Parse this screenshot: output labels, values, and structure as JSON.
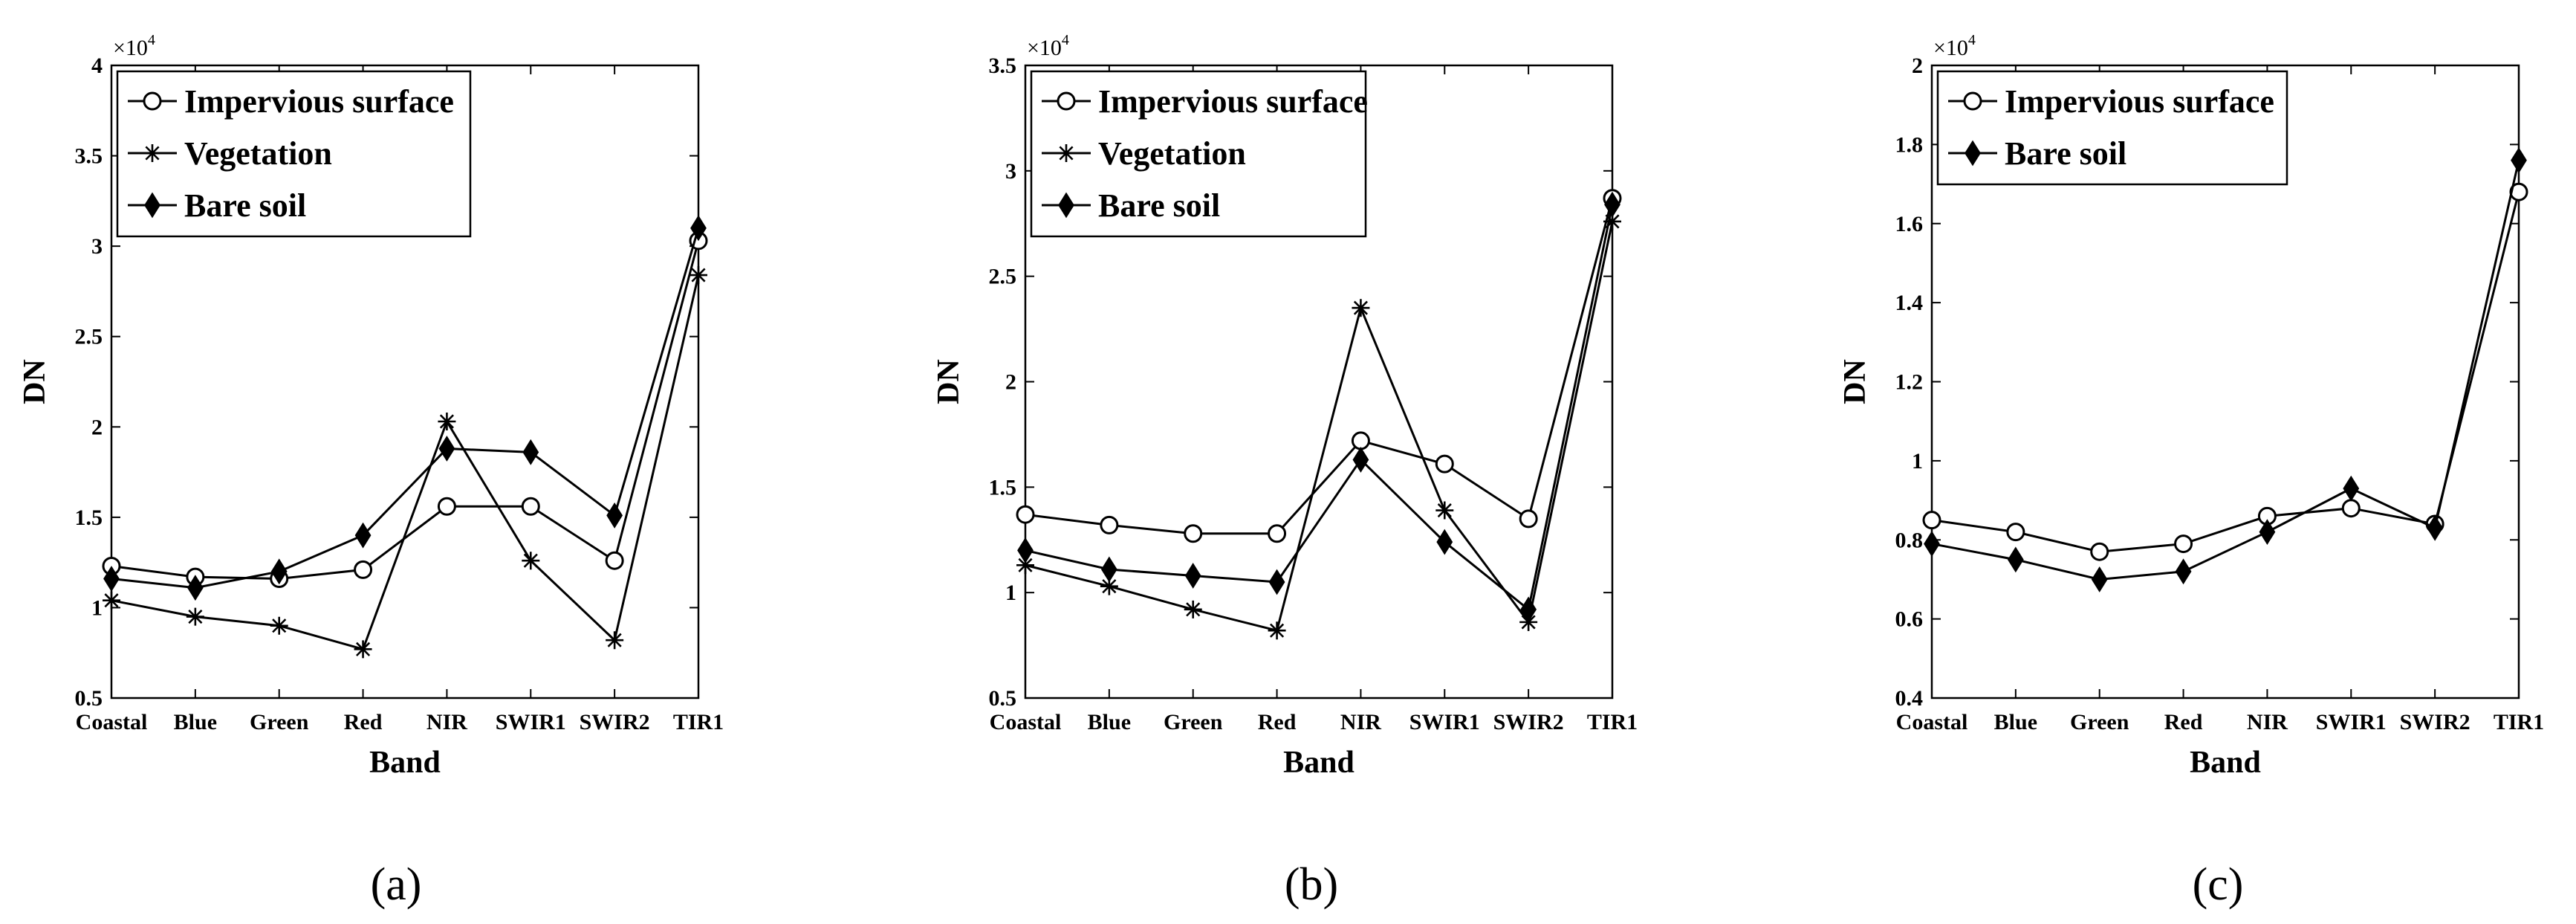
{
  "figure": {
    "panel_labels": [
      "(a)",
      "(b)",
      "(c)"
    ]
  },
  "chart_data": [
    {
      "panel": "(a)",
      "type": "line",
      "xlabel": "Band",
      "ylabel": "DN",
      "exponent_label": "×10",
      "exponent_power": "4",
      "categories": [
        "Coastal",
        "Blue",
        "Green",
        "Red",
        "NIR",
        "SWIR1",
        "SWIR2",
        "TIR1"
      ],
      "ylim": [
        0.5,
        4
      ],
      "yticks": [
        0.5,
        1,
        1.5,
        2,
        2.5,
        3,
        3.5,
        4
      ],
      "ytick_labels": [
        "0.5",
        "1",
        "1.5",
        "2",
        "2.5",
        "3",
        "3.5",
        "4"
      ],
      "series": [
        {
          "name": "Impervious surface",
          "marker": "circle",
          "values": [
            1.23,
            1.17,
            1.16,
            1.21,
            1.56,
            1.56,
            1.26,
            3.03
          ]
        },
        {
          "name": "Vegetation",
          "marker": "star",
          "values": [
            1.04,
            0.95,
            0.9,
            0.77,
            2.03,
            1.26,
            0.82,
            2.84
          ]
        },
        {
          "name": "Bare soil",
          "marker": "diamond",
          "values": [
            1.16,
            1.11,
            1.2,
            1.4,
            1.88,
            1.86,
            1.51,
            3.1
          ]
        }
      ]
    },
    {
      "panel": "(b)",
      "type": "line",
      "xlabel": "Band",
      "ylabel": "DN",
      "exponent_label": "×10",
      "exponent_power": "4",
      "categories": [
        "Coastal",
        "Blue",
        "Green",
        "Red",
        "NIR",
        "SWIR1",
        "SWIR2",
        "TIR1"
      ],
      "ylim": [
        0.5,
        3.5
      ],
      "yticks": [
        0.5,
        1,
        1.5,
        2,
        2.5,
        3,
        3.5
      ],
      "ytick_labels": [
        "0.5",
        "1",
        "1.5",
        "2",
        "2.5",
        "3",
        "3.5"
      ],
      "series": [
        {
          "name": "Impervious surface",
          "marker": "circle",
          "values": [
            1.37,
            1.32,
            1.28,
            1.28,
            1.72,
            1.61,
            1.35,
            2.87
          ]
        },
        {
          "name": "Vegetation",
          "marker": "star",
          "values": [
            1.13,
            1.03,
            0.92,
            0.82,
            2.35,
            1.39,
            0.86,
            2.76
          ]
        },
        {
          "name": "Bare soil",
          "marker": "diamond",
          "values": [
            1.2,
            1.11,
            1.08,
            1.05,
            1.63,
            1.24,
            0.92,
            2.84
          ]
        }
      ]
    },
    {
      "panel": "(c)",
      "type": "line",
      "xlabel": "Band",
      "ylabel": "DN",
      "exponent_label": "×10",
      "exponent_power": "4",
      "categories": [
        "Coastal",
        "Blue",
        "Green",
        "Red",
        "NIR",
        "SWIR1",
        "SWIR2",
        "TIR1"
      ],
      "ylim": [
        0.4,
        2
      ],
      "yticks": [
        0.4,
        0.6,
        0.8,
        1.0,
        1.2,
        1.4,
        1.6,
        1.8,
        2.0
      ],
      "ytick_labels": [
        "0.4",
        "0.6",
        "0.8",
        "1",
        "1.2",
        "1.4",
        "1.6",
        "1.8",
        "2"
      ],
      "series": [
        {
          "name": "Impervious surface",
          "marker": "circle",
          "values": [
            0.85,
            0.82,
            0.77,
            0.79,
            0.86,
            0.88,
            0.84,
            1.68
          ]
        },
        {
          "name": "Bare soil",
          "marker": "diamond",
          "values": [
            0.79,
            0.75,
            0.7,
            0.72,
            0.82,
            0.93,
            0.83,
            1.76
          ]
        }
      ]
    }
  ]
}
